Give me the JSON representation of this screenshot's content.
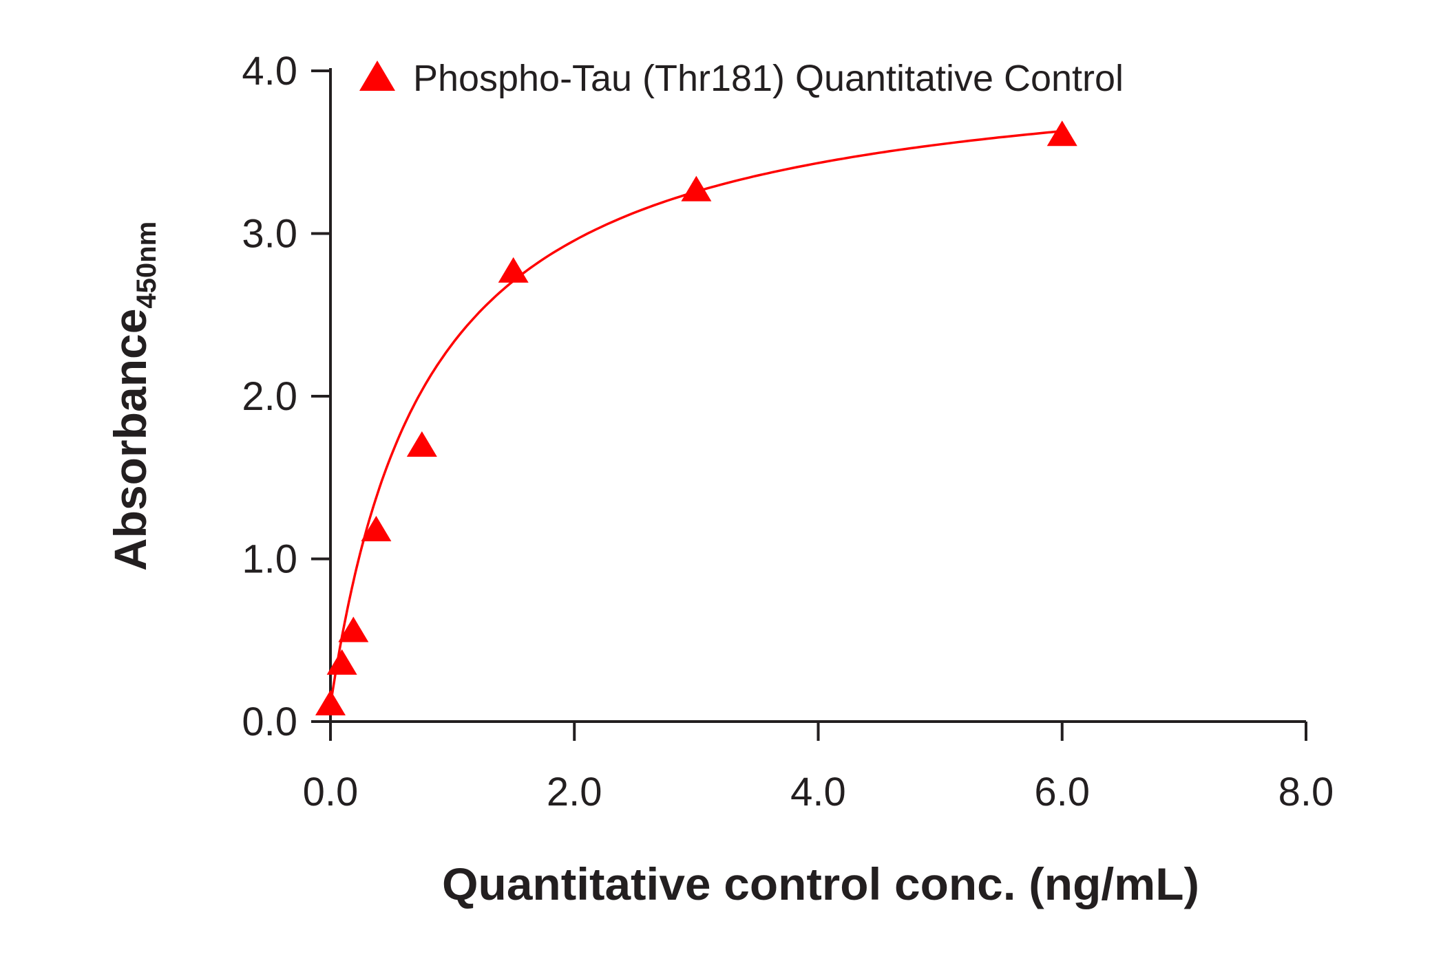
{
  "chart_data": {
    "type": "scatter",
    "title": "",
    "xlabel": "Quantitative control conc. (ng/mL)",
    "ylabel": "Absorbance",
    "ylabel_subscript": "450nm",
    "xlim": [
      0,
      8
    ],
    "ylim": [
      0,
      4
    ],
    "xticks": [
      "0.0",
      "2.0",
      "4.0",
      "6.0",
      "8.0"
    ],
    "yticks": [
      "0.0",
      "1.0",
      "2.0",
      "3.0",
      "4.0"
    ],
    "grid": false,
    "legend_position": "top",
    "series": [
      {
        "name": "Phospho-Tau (Thr181) Quantitative Control",
        "color": "#ff0000",
        "marker": "triangle",
        "fit_curve": true,
        "x": [
          0,
          0.094,
          0.188,
          0.375,
          0.75,
          1.5,
          3.0,
          6.0
        ],
        "y": [
          0.11,
          0.36,
          0.56,
          1.18,
          1.7,
          2.77,
          3.27,
          3.61
        ]
      }
    ]
  }
}
